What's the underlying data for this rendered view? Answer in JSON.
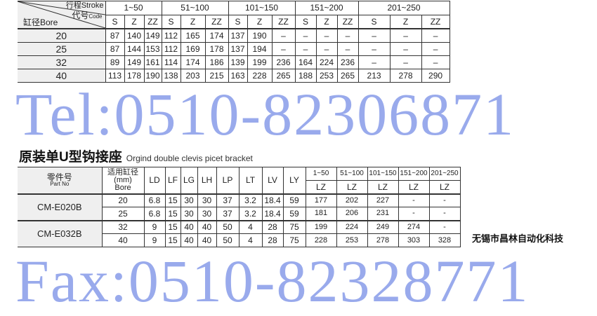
{
  "stroke_table": {
    "header_stroke": "行程Stroke",
    "header_code": "代号",
    "header_code_en": "Code",
    "header_bore": "缸径Bore",
    "groups": [
      "1~50",
      "51~100",
      "101~150",
      "151~200",
      "201~250"
    ],
    "subcols": [
      "S",
      "Z",
      "ZZ"
    ],
    "rows": [
      {
        "bore": "20",
        "values": [
          "87",
          "140",
          "149",
          "112",
          "165",
          "174",
          "137",
          "190",
          "–",
          "–",
          "–",
          "–",
          "–",
          "–",
          "–"
        ]
      },
      {
        "bore": "25",
        "values": [
          "87",
          "144",
          "153",
          "112",
          "169",
          "178",
          "137",
          "194",
          "–",
          "–",
          "–",
          "–",
          "–",
          "–",
          "–"
        ]
      },
      {
        "bore": "32",
        "values": [
          "89",
          "149",
          "161",
          "114",
          "174",
          "186",
          "139",
          "199",
          "236",
          "164",
          "224",
          "236",
          "–",
          "–",
          "–"
        ]
      },
      {
        "bore": "40",
        "values": [
          "113",
          "178",
          "190",
          "138",
          "203",
          "215",
          "163",
          "228",
          "265",
          "188",
          "253",
          "265",
          "213",
          "278",
          "290"
        ]
      }
    ]
  },
  "bracket_section": {
    "title": "原装单U型钩接座",
    "title_en": "Orgind double clevis picet bracket"
  },
  "bracket_table": {
    "part_header": "零件号",
    "part_header_en": "Part No",
    "bore_header": "适用缸径",
    "bore_unit": "(mm)",
    "bore_en": "Bore",
    "dim_cols": [
      "LD",
      "LF",
      "LG",
      "LH",
      "LP",
      "LT",
      "LV",
      "LY"
    ],
    "stroke_groups": [
      "1~50",
      "51~100",
      "101~150",
      "151~200",
      "201~250"
    ],
    "lz_label": "LZ",
    "parts": [
      {
        "part": "CM-E020B",
        "rows": [
          {
            "bore": "20",
            "dims": [
              "6.8",
              "15",
              "30",
              "30",
              "37",
              "3.2",
              "18.4",
              "59"
            ],
            "lz": [
              "177",
              "202",
              "227",
              "-",
              "-"
            ]
          },
          {
            "bore": "25",
            "dims": [
              "6.8",
              "15",
              "30",
              "30",
              "37",
              "3.2",
              "18.4",
              "59"
            ],
            "lz": [
              "181",
              "206",
              "231",
              "-",
              "-"
            ]
          }
        ]
      },
      {
        "part": "CM-E032B",
        "rows": [
          {
            "bore": "32",
            "dims": [
              "9",
              "15",
              "40",
              "40",
              "50",
              "4",
              "28",
              "75"
            ],
            "lz": [
              "199",
              "224",
              "249",
              "274",
              "-"
            ]
          },
          {
            "bore": "40",
            "dims": [
              "9",
              "15",
              "40",
              "40",
              "50",
              "4",
              "28",
              "75"
            ],
            "lz": [
              "228",
              "253",
              "278",
              "303",
              "328"
            ]
          }
        ]
      }
    ]
  },
  "watermarks": {
    "tel": "Tel:0510-82306871",
    "fax": "Fax:0510-82328771",
    "color": "#4664dc"
  },
  "footer": "无锡市昌林自动化科技"
}
